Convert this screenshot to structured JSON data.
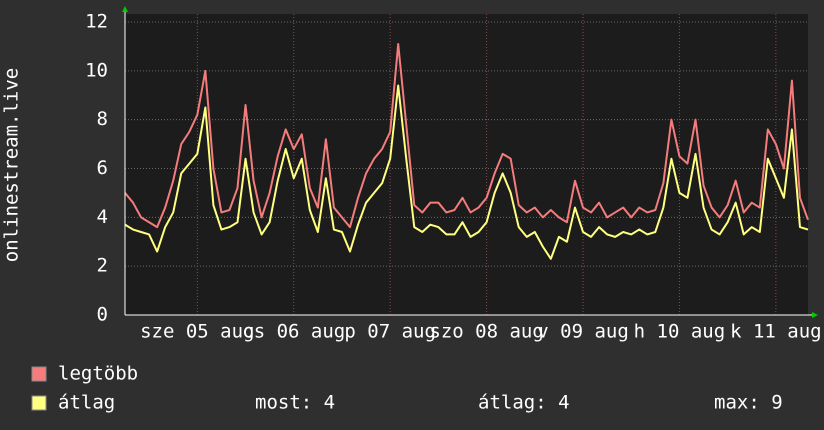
{
  "chart_data": {
    "type": "line",
    "y_label": "onlinestream.live",
    "x": [
      0,
      2,
      4,
      6,
      8,
      10,
      12,
      14,
      16,
      18,
      20,
      22,
      24,
      26,
      28,
      30,
      32,
      34,
      36,
      38,
      40,
      42,
      44,
      46,
      48,
      50,
      52,
      54,
      56,
      58,
      60,
      62,
      64,
      66,
      68,
      70,
      72,
      74,
      76,
      78,
      80,
      82,
      84,
      86,
      88,
      90,
      92,
      94,
      96,
      98,
      100,
      102,
      104,
      106,
      108,
      110,
      112,
      114,
      116,
      118,
      120,
      122,
      124,
      126,
      128,
      130,
      132,
      134,
      136,
      138,
      140,
      142,
      144,
      146,
      148,
      150,
      152,
      154,
      156,
      158,
      160,
      162,
      164,
      166,
      168,
      170
    ],
    "xlim": [
      0,
      170
    ],
    "xticks": [
      {
        "value": 18,
        "label": "sze 05 aug"
      },
      {
        "value": 42,
        "label": "cs 06 aug"
      },
      {
        "value": 66,
        "label": "p 07 aug"
      },
      {
        "value": 90,
        "label": "szo 08 aug"
      },
      {
        "value": 114,
        "label": "v 09 aug"
      },
      {
        "value": 138,
        "label": "h 10 aug"
      },
      {
        "value": 162,
        "label": "k 11 aug"
      }
    ],
    "ylim": [
      0,
      12
    ],
    "yticks": [
      0,
      2,
      4,
      6,
      8,
      10,
      12
    ],
    "grid": true,
    "series": [
      {
        "name": "legtöbb",
        "color": "#f47c7c",
        "values": [
          5,
          4.6,
          4,
          3.8,
          3.6,
          4.4,
          5.5,
          7,
          7.5,
          8.2,
          10,
          6,
          4.2,
          4.3,
          5.2,
          8.6,
          5.5,
          4,
          5,
          6.5,
          7.6,
          6.8,
          7.4,
          5.2,
          4.4,
          7.2,
          4.4,
          4,
          3.6,
          4.8,
          5.8,
          6.4,
          6.8,
          7.5,
          11.1,
          7.8,
          4.5,
          4.2,
          4.6,
          4.6,
          4.2,
          4.3,
          4.8,
          4.2,
          4.4,
          4.8,
          5.8,
          6.6,
          6.4,
          4.5,
          4.2,
          4.4,
          4,
          4.3,
          4,
          3.8,
          5.5,
          4.4,
          4.2,
          4.6,
          4,
          4.2,
          4.4,
          4,
          4.4,
          4.2,
          4.3,
          5.4,
          8,
          6.5,
          6.2,
          8,
          5.3,
          4.4,
          4,
          4.5,
          5.5,
          4.2,
          4.6,
          4.4,
          7.6,
          7,
          6,
          9.6,
          4.8,
          3.9
        ]
      },
      {
        "name": "átlag",
        "color": "#ffff80",
        "values": [
          3.7,
          3.5,
          3.4,
          3.3,
          2.6,
          3.6,
          4.2,
          5.8,
          6.2,
          6.6,
          8.5,
          4.5,
          3.5,
          3.6,
          3.8,
          6.4,
          4.2,
          3.3,
          3.8,
          5.5,
          6.8,
          5.6,
          6.4,
          4.3,
          3.4,
          5.6,
          3.5,
          3.4,
          2.6,
          3.7,
          4.6,
          5,
          5.4,
          6.4,
          9.4,
          6.4,
          3.6,
          3.4,
          3.7,
          3.6,
          3.3,
          3.3,
          3.8,
          3.2,
          3.4,
          3.8,
          5,
          5.8,
          5,
          3.6,
          3.2,
          3.4,
          2.8,
          2.3,
          3.2,
          3,
          4.4,
          3.4,
          3.2,
          3.6,
          3.3,
          3.2,
          3.4,
          3.3,
          3.5,
          3.3,
          3.4,
          4.4,
          6.4,
          5,
          4.8,
          6.6,
          4.4,
          3.5,
          3.3,
          3.8,
          4.6,
          3.3,
          3.6,
          3.4,
          6.4,
          5.6,
          4.8,
          7.6,
          3.6,
          3.5
        ]
      }
    ],
    "stats": [
      "most: 4",
      "átlag: 4",
      "max: 9"
    ]
  }
}
